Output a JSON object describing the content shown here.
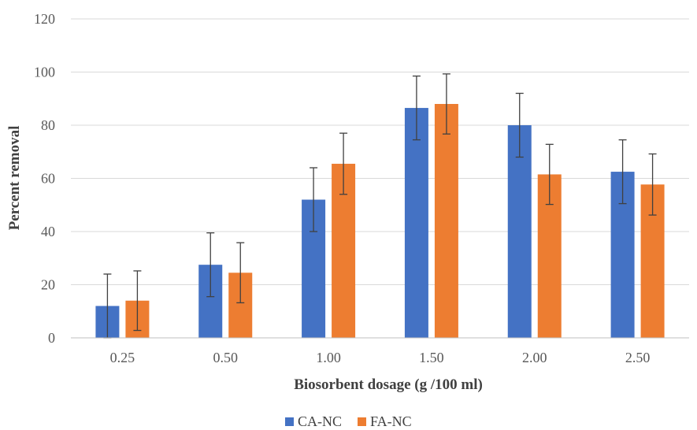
{
  "chart_data": {
    "type": "bar",
    "title": "",
    "xlabel": "Biosorbent dosage (g /100 ml)",
    "ylabel": "Percent removal",
    "ylim": [
      0,
      120
    ],
    "yticks": [
      "0",
      "20",
      "40",
      "60",
      "80",
      "100",
      "120"
    ],
    "categories": [
      "0.25",
      "0.50",
      "1.00",
      "1.50",
      "2.00",
      "2.50"
    ],
    "grid": true,
    "legend_position": "bottom",
    "series": [
      {
        "name": "CA-NC",
        "color": "#4472c4",
        "values": [
          12,
          27.5,
          52,
          86.5,
          80,
          62.5
        ],
        "error": [
          12,
          12,
          12,
          12,
          12,
          12
        ]
      },
      {
        "name": "FA-NC",
        "color": "#ed7d31",
        "values": [
          14,
          24.5,
          65.5,
          88,
          61.5,
          57.7
        ],
        "error": [
          11.2,
          11.3,
          11.5,
          11.3,
          11.3,
          11.5
        ]
      }
    ]
  }
}
